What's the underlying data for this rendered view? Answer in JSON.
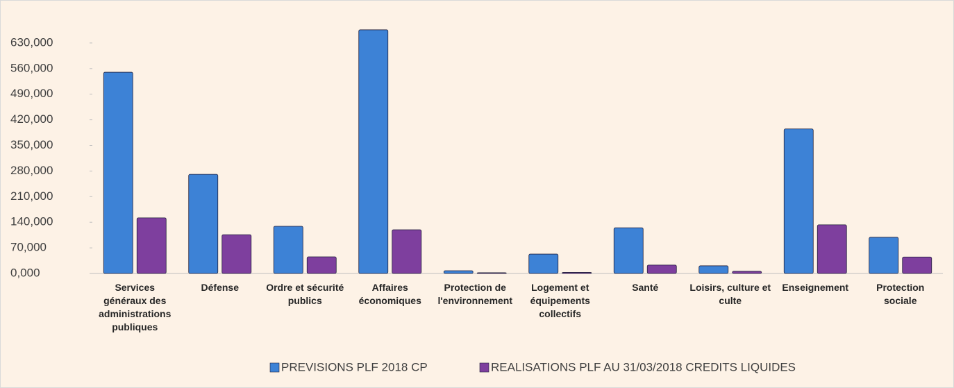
{
  "chart_data": {
    "type": "bar",
    "categories": [
      "Services généraux des administrations publiques",
      "Défense",
      "Ordre et sécurité publics",
      "Affaires économiques",
      "Protection de l'environnement",
      "Logement et équipements collectifs",
      "Santé",
      "Loisirs, culture et culte",
      "Enseignement",
      "Protection sociale"
    ],
    "series": [
      {
        "name": "PREVISIONS PLF 2018 CP",
        "color": "#3d82d6",
        "values": [
          550000,
          271000,
          129000,
          666000,
          7600,
          53000,
          125000,
          21000,
          395000,
          99000
        ]
      },
      {
        "name": "REALISATIONS PLF AU 31/03/2018 CREDITS LIQUIDES",
        "color": "#7e3f9e",
        "values": [
          152000,
          106000,
          45500,
          119500,
          2000,
          3000,
          23000,
          6000,
          133000,
          45000
        ]
      }
    ],
    "ylim": [
      0,
      700000
    ],
    "yticks": [
      {
        "value": 0,
        "label": "0,000"
      },
      {
        "value": 70000,
        "label": "70,000"
      },
      {
        "value": 140000,
        "label": "140,000"
      },
      {
        "value": 210000,
        "label": "210,000"
      },
      {
        "value": 280000,
        "label": "280,000"
      },
      {
        "value": 350000,
        "label": "350,000"
      },
      {
        "value": 420000,
        "label": "420,000"
      },
      {
        "value": 490000,
        "label": "490,000"
      },
      {
        "value": 560000,
        "label": "560,000"
      },
      {
        "value": 630000,
        "label": "630,000"
      }
    ],
    "legend": "bottom"
  }
}
